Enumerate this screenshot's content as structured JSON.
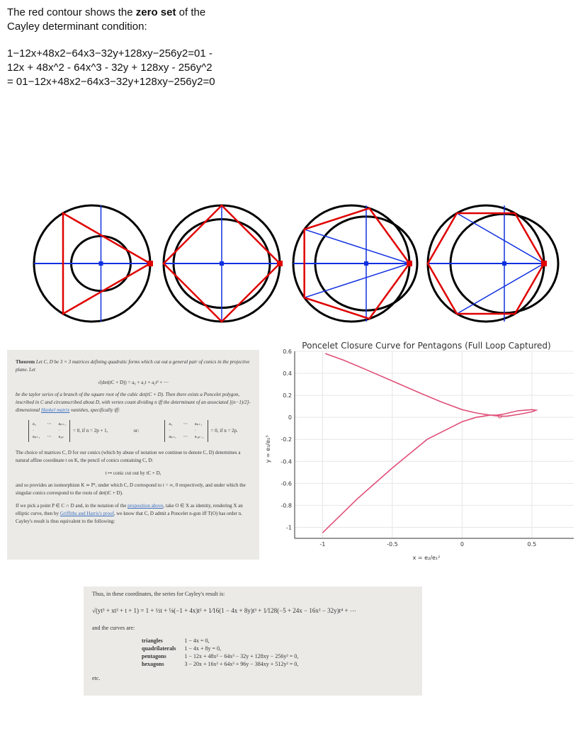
{
  "intro": {
    "line1_prefix": "The red contour shows the ",
    "line1_bold": "zero set",
    "line1_suffix": " of the Cayley determinant condition:",
    "equation": "1−12x+48x2−64x3−32y+128xy−256y2=01 - 12x + 48x^2 - 64x^3 - 32y + 128xy - 256y^2 = 01−12x+48x2−64x3−32y+128xy−256y2=0"
  },
  "theorem": {
    "title": "Theorem",
    "p1": "Let C, D be 3 × 3 matrices defining quadratic forms which cut out a general pair of conics in the projective plane. Let",
    "formula1": "√(det(tC + D)) = a₀ + a₁t + a₂t² + ⋯",
    "p2_a": "be the taylor series of a branch of the square root of the cubic det(tC + D). Then there exists a Poncelet polygon, inscribed in C and circumscribed about D, with vertex count dividing n iff the determinant of an associated ",
    "p2_frac": "[(n−1)/2]",
    "p2_b": "-dimensional ",
    "p2_link": "Hankel matrix",
    "p2_c": " vanishes, specifically iff:",
    "matrix1": [
      "a₂",
      "⋯",
      "aₚ₊₁",
      "·",
      "",
      "·",
      "aₚ₊₁",
      "⋯",
      "a₂ₚ"
    ],
    "matrix1_cond": "= 0, if n = 2p + 1,",
    "or": "or:",
    "matrix2": [
      "a₃",
      "⋯",
      "aₚ₊₁",
      "·",
      "",
      "·",
      "aₚ₊₁",
      "⋯",
      "a₂ₚ₋₁"
    ],
    "matrix2_cond": "= 0, if n = 2p.",
    "p3": "The choice of matrices C, D for our conics (which by abuse of notation we continue to denote C, D) determines a natural affine coordinate t on K, the pencil of conics containing C, D:",
    "formula2": "t ↦ conic cut out by tC + D,",
    "p4": "and so provides an isomorphism K ≃ P¹, under which C, D correspond to t = ∞, 0 respectively, and under which the singular conics correspond to the roots of det(tC + D).",
    "p5_a": "If we pick a point P ∈ C ∩ D and, in the notation of the ",
    "p5_link1": "proposition above",
    "p5_b": ", take O ∈ X as identity, rendering X an elliptic curve, then by ",
    "p5_link2": "Griffiths and Harris's proof",
    "p5_c": ", we know that C, D admit a Poncelet n-gon iff T(O) has order n. Cayley's result is thus equivalent to the following:"
  },
  "cayley": {
    "intro": "Thus, in these coordinates, the series for Cayley's result is:",
    "series": "√(yt³ + xt² + t + 1) = 1 + ½t + ⅛(−1 + 4x)t² + 1⁄16(1 − 4x + 8y)t³ + 1⁄128(−5 + 24x − 16x² − 32y)t⁴ + ⋯",
    "curves_intro": "and the curves are:",
    "curves": [
      {
        "name": "triangles",
        "eq": "1 − 4x = 0,"
      },
      {
        "name": "quadrilaterals",
        "eq": "1 − 4x + 8y = 0,"
      },
      {
        "name": "pentagons",
        "eq": "1 − 12x + 48x² − 64x³ − 32y + 128xy − 256y² = 0,"
      },
      {
        "name": "hexagons",
        "eq": "3 − 20x + 16x² + 64x³ + 96y − 384xy + 512y² = 0,"
      }
    ],
    "etc": "etc."
  },
  "chart_data": {
    "type": "line",
    "title": "Poncelet Closure Curve for Pentagons (Full Loop Captured)",
    "xlabel": "x = e₂/e₁²",
    "ylabel": "y = e₃/e₁³",
    "xlim": [
      -1.2,
      0.8
    ],
    "ylim": [
      -1.1,
      0.6
    ],
    "xticks": [
      -1.0,
      -0.5,
      0.0,
      0.5
    ],
    "yticks": [
      0.6,
      0.4,
      0.2,
      0.0,
      -0.2,
      -0.4,
      -0.6,
      -0.8,
      -1.0
    ],
    "series_color": "#e0507a",
    "grid": true,
    "x": [
      -1.0,
      -0.75,
      -0.5,
      -0.25,
      0.0,
      0.1,
      0.2,
      0.25,
      0.3,
      0.4,
      0.5,
      0.53,
      0.5,
      0.42,
      0.32,
      0.28,
      0.2,
      0.1,
      0.0,
      -0.15,
      -0.3,
      -0.5,
      -0.7,
      -0.85,
      -0.98
    ],
    "y": [
      -1.05,
      -0.74,
      -0.46,
      -0.2,
      -0.04,
      0.0,
      0.02,
      0.02,
      0.03,
      0.06,
      0.07,
      0.065,
      0.05,
      0.03,
      0.01,
      0.01,
      0.02,
      0.04,
      0.07,
      0.14,
      0.22,
      0.33,
      0.44,
      0.52,
      0.58
    ],
    "marker": {
      "x": 0.27,
      "y": 0.01
    }
  },
  "polygons": {
    "colors": {
      "circle": "#000000",
      "poncelet": "#e00000",
      "chord": "#1030e0",
      "point": "#e00000"
    }
  }
}
